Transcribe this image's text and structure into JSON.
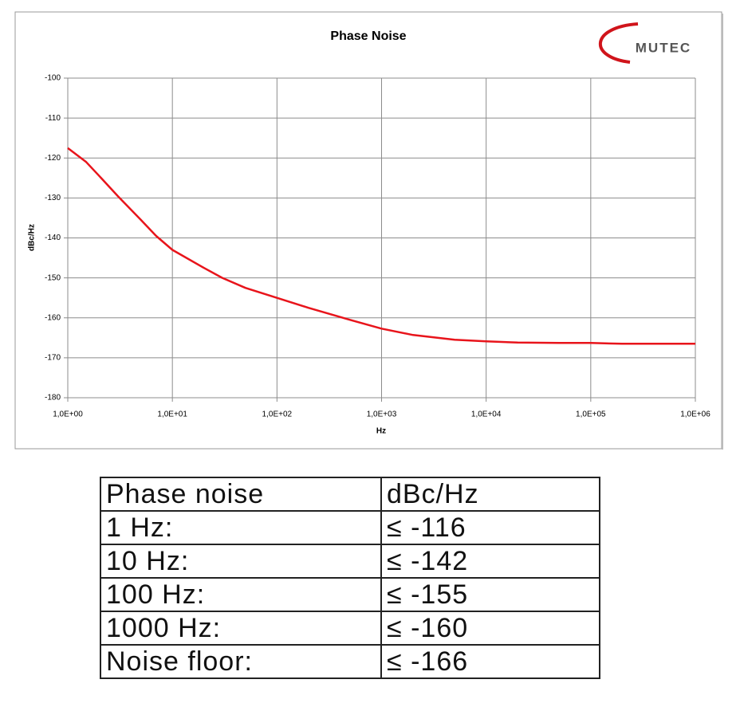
{
  "chart_data": {
    "type": "line",
    "title": "Phase Noise",
    "x_label": "Hz",
    "y_label": "dBc/Hz",
    "xscale": "log",
    "grid": true,
    "color": "#e8141b",
    "x": [
      1,
      1.5,
      2,
      3,
      5,
      7,
      10,
      20,
      30,
      50,
      100,
      200,
      500,
      1000,
      2000,
      5000,
      10000,
      20000,
      50000,
      100000,
      200000,
      500000,
      1000000
    ],
    "values": [
      -117.5,
      -121,
      -124.5,
      -129.5,
      -135.5,
      -139.5,
      -143,
      -147.5,
      -150,
      -152.5,
      -155,
      -157.5,
      -160.5,
      -162.7,
      -164.3,
      -165.5,
      -165.9,
      -166.2,
      -166.3,
      -166.3,
      -166.5,
      -166.5,
      -166.5
    ],
    "xlim": [
      1,
      1000000
    ],
    "xticks": [
      {
        "value": 1,
        "label": "1,0E+00"
      },
      {
        "value": 10,
        "label": "1,0E+01"
      },
      {
        "value": 100,
        "label": "1,0E+02"
      },
      {
        "value": 1000,
        "label": "1,0E+03"
      },
      {
        "value": 10000,
        "label": "1,0E+04"
      },
      {
        "value": 100000,
        "label": "1,0E+05"
      },
      {
        "value": 1000000,
        "label": "1,0E+06"
      }
    ],
    "ylim": [
      -180,
      -100
    ],
    "yticks": [
      -100,
      -110,
      -120,
      -130,
      -140,
      -150,
      -160,
      -170,
      -180
    ]
  },
  "logo": "MUTEC",
  "table": {
    "header": [
      "Phase noise",
      "dBc/Hz"
    ],
    "rows": [
      [
        "1 Hz:",
        "≤ -116"
      ],
      [
        "10 Hz:",
        "≤ -142"
      ],
      [
        "100 Hz:",
        "≤ -155"
      ],
      [
        "1000 Hz:",
        "≤ -160"
      ],
      [
        "Noise floor:",
        "≤ -166"
      ]
    ]
  }
}
